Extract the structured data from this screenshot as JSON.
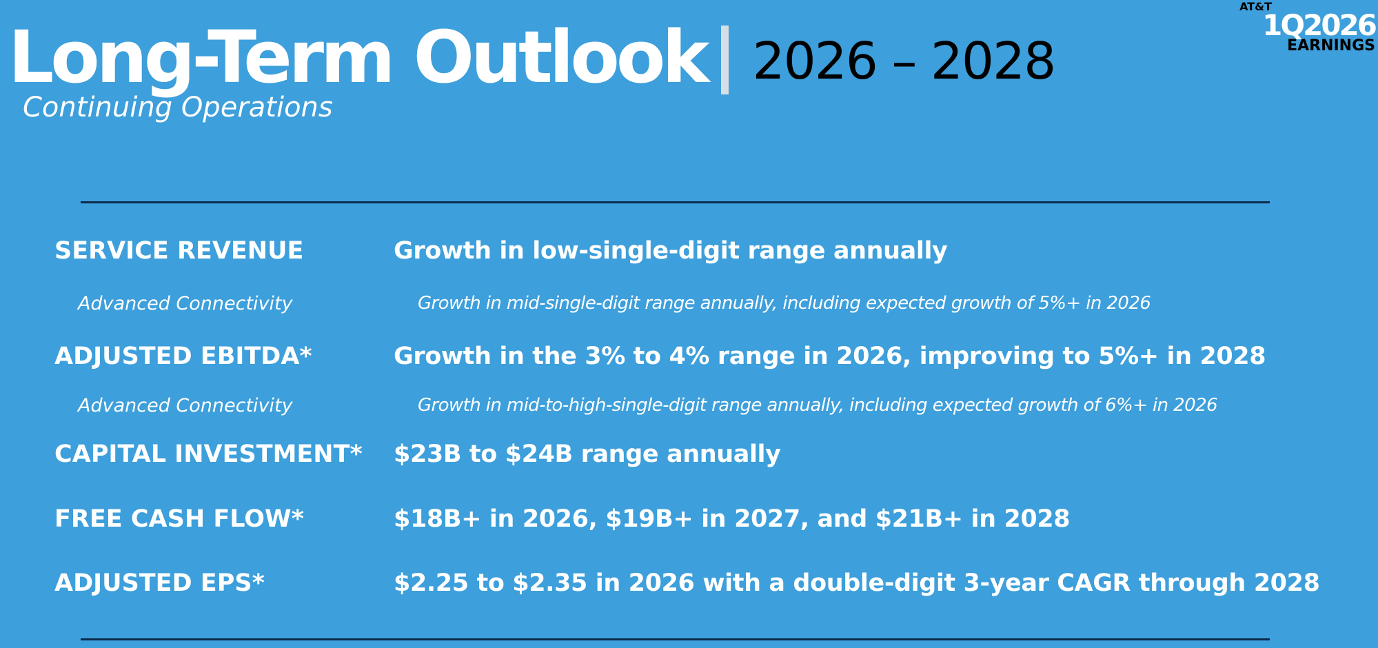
{
  "header": {
    "title": "Long-Term Outlook",
    "years": "2026 – 2028",
    "subtitle": "Continuing Operations"
  },
  "brand": {
    "company": "AT&T",
    "period": "1Q2026",
    "label": "EARNINGS"
  },
  "rows": [
    {
      "label": "SERVICE REVENUE",
      "value": "Growth in low-single-digit range annually"
    },
    {
      "label": "Advanced Connectivity",
      "value": "Growth in mid-single-digit range annually, including expected growth of 5%+ in 2026"
    },
    {
      "label": "ADJUSTED EBITDA*",
      "value": "Growth in the 3% to 4% range in 2026, improving to 5%+ in 2028"
    },
    {
      "label": "Advanced Connectivity",
      "value": "Growth in mid-to-high-single-digit range annually, including expected growth of 6%+ in 2026"
    },
    {
      "label": "CAPITAL INVESTMENT*",
      "value": "$23B to $24B range annually"
    },
    {
      "label": "FREE CASH FLOW*",
      "value": "$18B+ in 2026, $19B+ in 2027, and $21B+ in 2028"
    },
    {
      "label": "ADJUSTED EPS*",
      "value": "$2.25 to $2.35 in 2026 with a double-digit 3-year CAGR through 2028"
    }
  ]
}
